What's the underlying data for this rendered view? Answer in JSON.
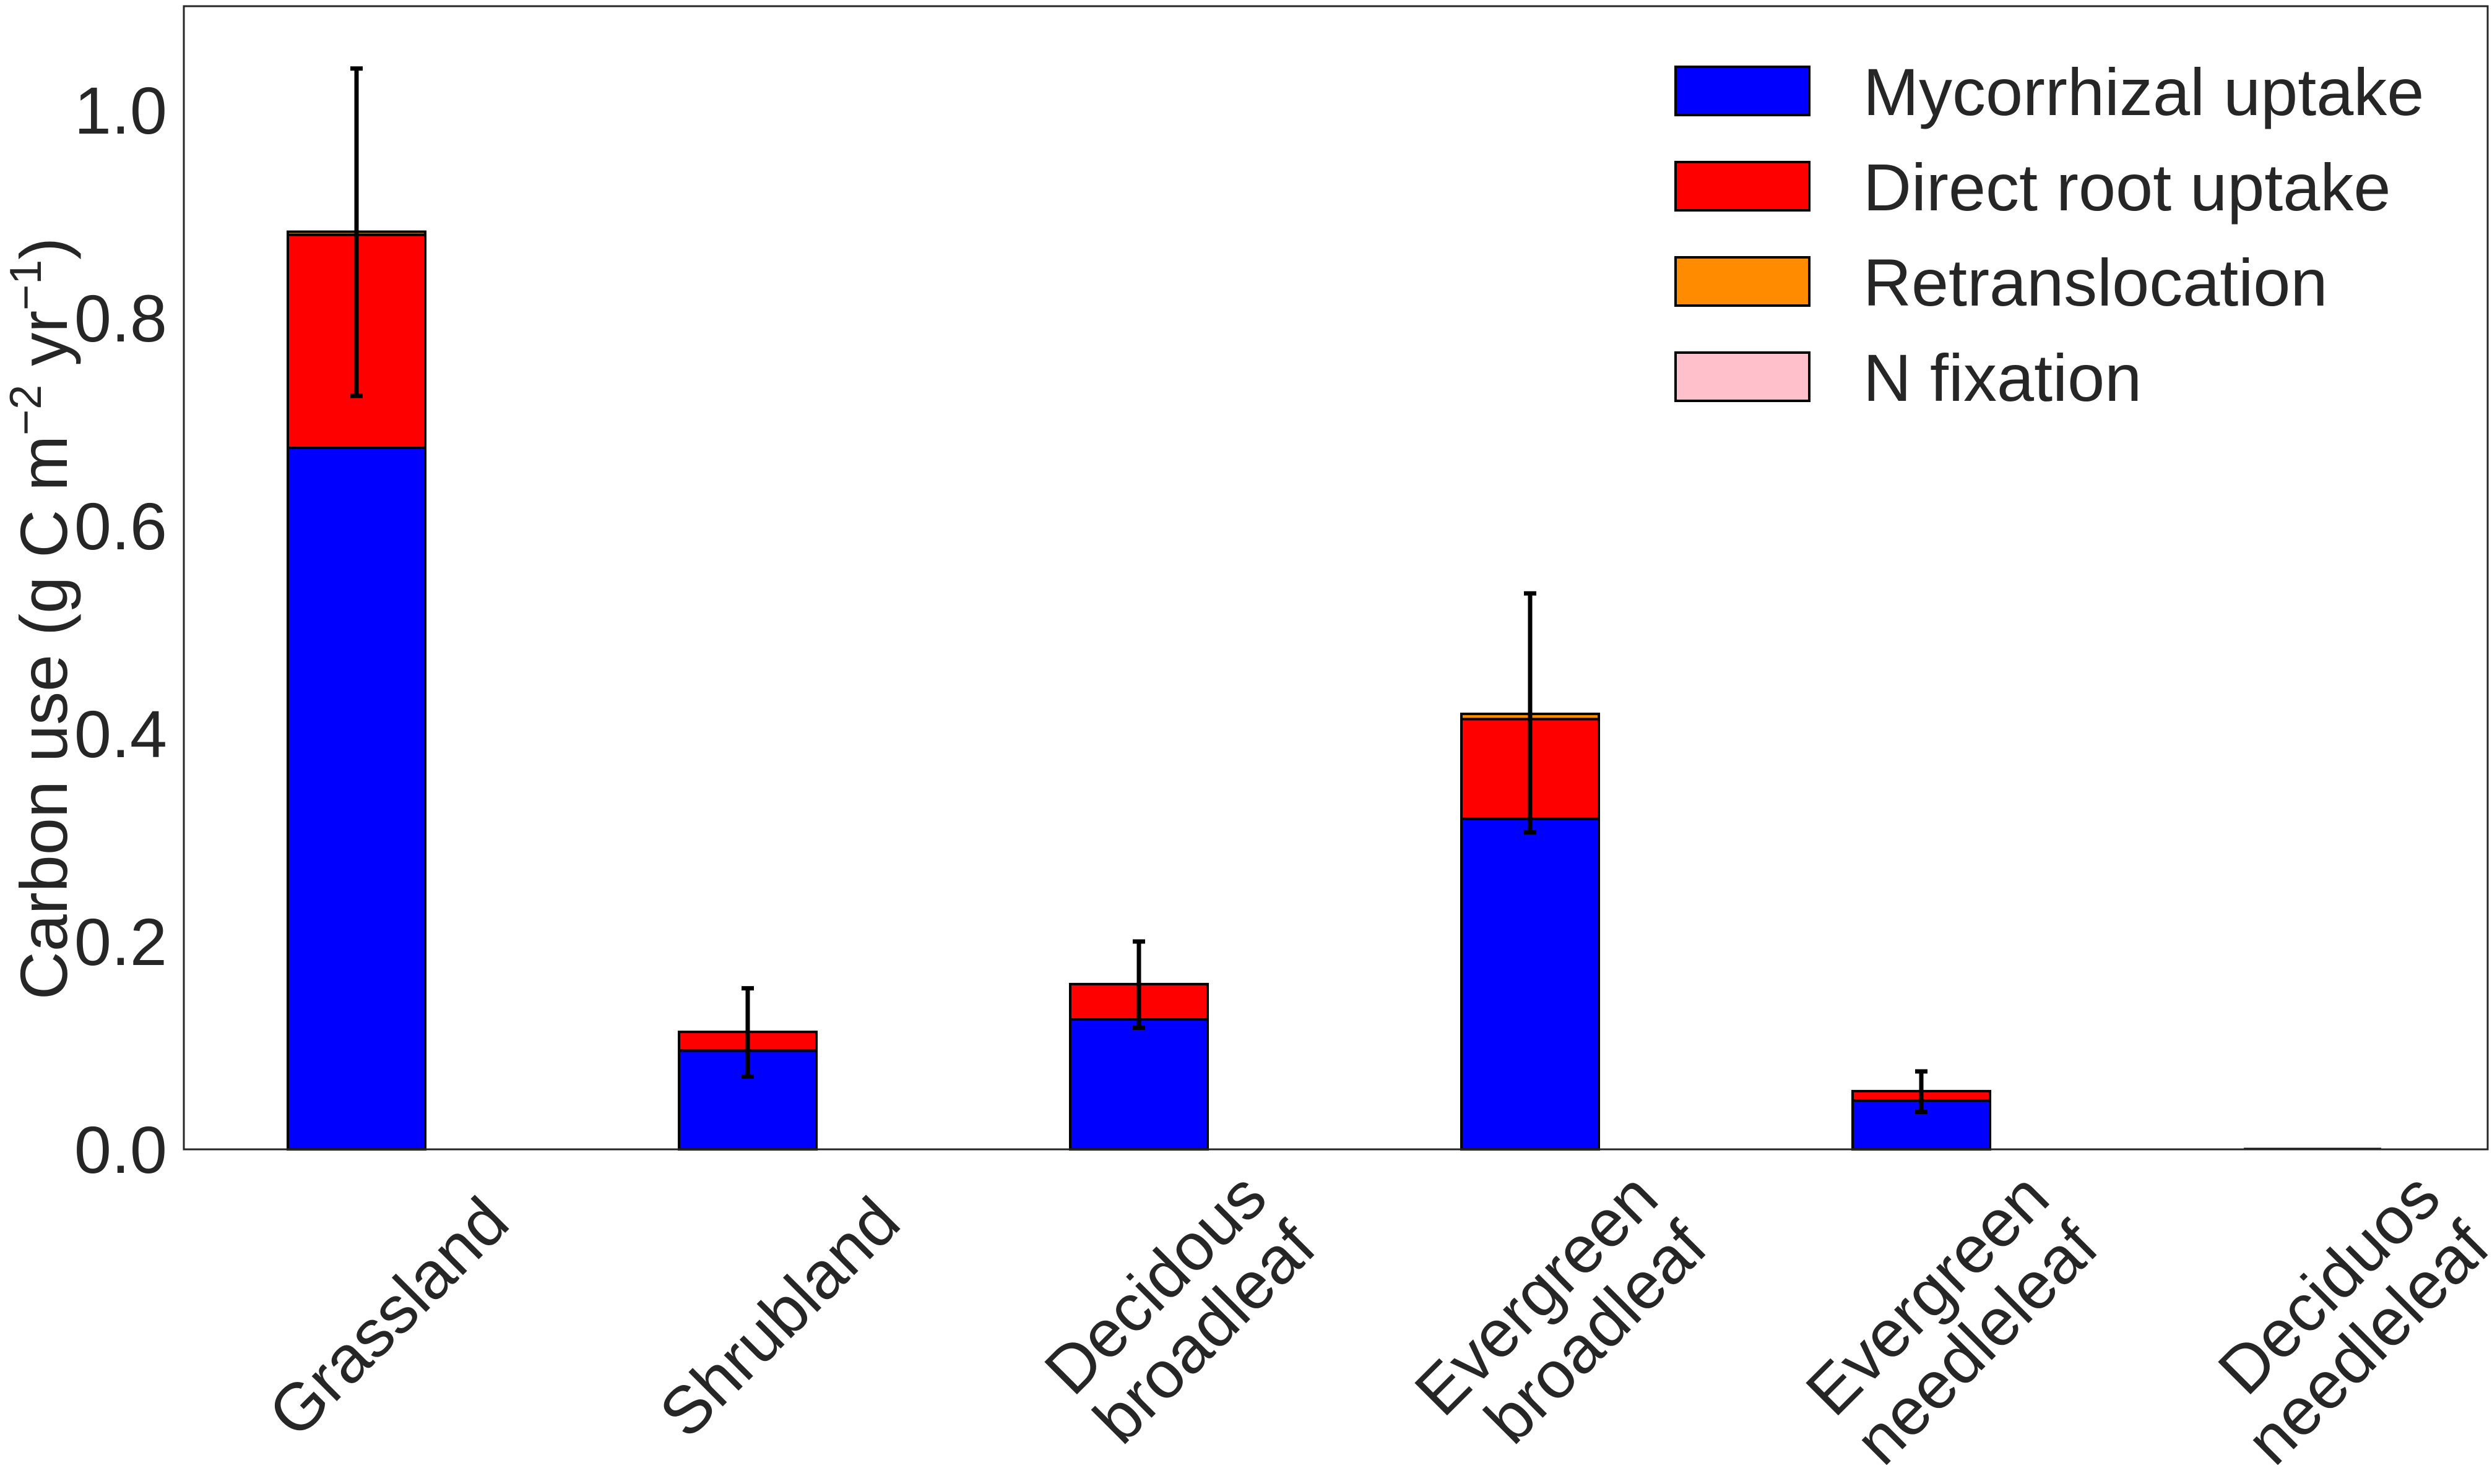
{
  "chart_data": {
    "type": "bar",
    "stacked": true,
    "categories": [
      [
        "Grassland"
      ],
      [
        "Shrubland"
      ],
      [
        "Decidous",
        "broadleaf"
      ],
      [
        "Evergreen",
        "broadleaf"
      ],
      [
        "Evergreen",
        "needleleaf"
      ],
      [
        "Deciduos",
        "needleleaf"
      ]
    ],
    "series": [
      {
        "name": "Mycorrhizal uptake",
        "color": "#0000ff",
        "values": [
          0.675,
          0.095,
          0.125,
          0.318,
          0.047,
          0.0
        ]
      },
      {
        "name": "Direct root uptake",
        "color": "#ff0000",
        "values": [
          0.205,
          0.018,
          0.034,
          0.096,
          0.009,
          0.0
        ]
      },
      {
        "name": "Retranslocation",
        "color": "#ff8c00",
        "values": [
          0.003,
          0.0,
          0.0,
          0.005,
          0.0,
          0.0
        ]
      },
      {
        "name": "N fixation",
        "color": "#ffc0cb",
        "values": [
          0.0,
          0.0,
          0.0,
          0.0,
          0.0,
          0.0
        ]
      }
    ],
    "error_bars": {
      "center": [
        0.882,
        0.113,
        0.159,
        0.419,
        0.056,
        0.0
      ],
      "upper": [
        1.04,
        0.155,
        0.2,
        0.535,
        0.075,
        0.0
      ],
      "lower": [
        0.725,
        0.07,
        0.117,
        0.305,
        0.036,
        0.0
      ]
    },
    "ylabel_main": "Carbon use (g C m",
    "ylabel_sup1": "−2",
    "ylabel_mid": " yr",
    "ylabel_sup2": "−1",
    "ylabel_end": ")",
    "xlabel": "",
    "ylim": [
      0,
      1.1
    ],
    "yticks": [
      "0.0",
      "0.2",
      "0.4",
      "0.6",
      "0.8",
      "1.0"
    ],
    "ytick_values": [
      0,
      0.2,
      0.4,
      0.6,
      0.8,
      1.0
    ],
    "grid": false,
    "legend_position": "top-right"
  }
}
